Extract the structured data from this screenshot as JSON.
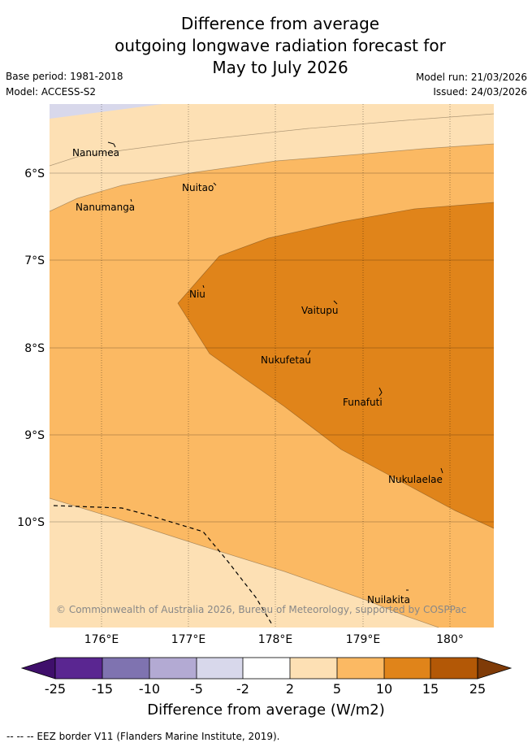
{
  "header": {
    "title_lines": [
      "Difference from average",
      "outgoing longwave radiation forecast for",
      "May to July 2026"
    ],
    "base_period": "Base period: 1981-2018",
    "model": "Model: ACCESS-S2",
    "model_run": "Model run: 21/03/2026",
    "issued": "Issued: 24/03/2026"
  },
  "map": {
    "lon_ticks": [
      "176°E",
      "177°E",
      "178°E",
      "179°E",
      "180°"
    ],
    "lat_ticks": [
      "6°S",
      "7°S",
      "8°S",
      "9°S",
      "10°S"
    ],
    "places": [
      {
        "name": "Nanumea"
      },
      {
        "name": "Nuitao"
      },
      {
        "name": "Nanumanga"
      },
      {
        "name": "Niu"
      },
      {
        "name": "Vaitupu"
      },
      {
        "name": "Nukufetau"
      },
      {
        "name": "Funafuti"
      },
      {
        "name": "Nukulaelae"
      },
      {
        "name": "Nuilakita"
      }
    ],
    "copyright": "© Commonwealth of Australia 2026, Bureau of Meteorology, supported by COSPPac"
  },
  "colorbar": {
    "labels": [
      "-25",
      "-15",
      "-10",
      "-5",
      "-2",
      "2",
      "5",
      "10",
      "15",
      "25"
    ],
    "colors": [
      "#3f0f6b",
      "#5a2691",
      "#7f73b0",
      "#b3aad3",
      "#d8d8eb",
      "#ffffff",
      "#fde0b4",
      "#fbb963",
      "#e0841a",
      "#b35806",
      "#7f3b08"
    ],
    "title": "Difference from average (W/m2)"
  },
  "legend": {
    "eez_label": "-- -- -- EEZ border V11 (Flanders Marine Institute, 2019)."
  }
}
